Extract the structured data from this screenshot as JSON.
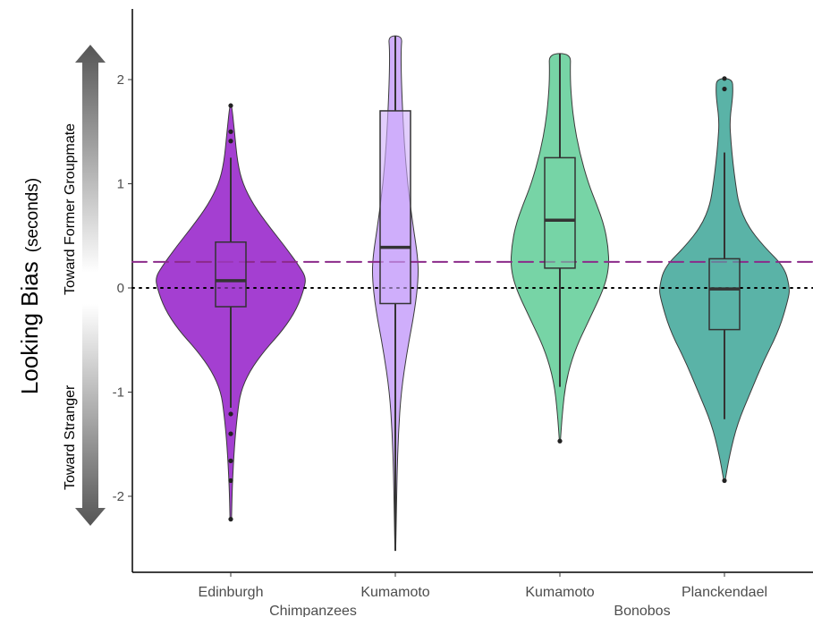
{
  "chart_data": {
    "type": "violin",
    "ylabel": "Looking Bias",
    "ylabel_unit": "(seconds)",
    "direction_labels": {
      "positive": "Toward Former Groupmate",
      "negative": "Toward Stranger"
    },
    "ylim": [
      -2.75,
      2.65
    ],
    "yticks": [
      -2,
      -1,
      0,
      1,
      2
    ],
    "ytick_labels": [
      "-2",
      "-1",
      "0",
      "1",
      "2"
    ],
    "reference_lines": [
      {
        "y": 0,
        "style": "dotted",
        "color": "#000000"
      },
      {
        "y": 0.25,
        "style": "dashed",
        "color": "#8b2a8a"
      }
    ],
    "groups": [
      {
        "name": "Chimpanzees",
        "categories": [
          "Edinburgh",
          "Kumamoto"
        ]
      },
      {
        "name": "Bonobos",
        "categories": [
          "Kumamoto",
          "Planckendael"
        ]
      }
    ],
    "categories": [
      "Edinburgh",
      "Kumamoto",
      "Kumamoto",
      "Planckendael"
    ],
    "series": [
      {
        "category": "Edinburgh",
        "group": "Chimpanzees",
        "color": "#a43fd1",
        "min": -2.22,
        "max": 1.77,
        "box": {
          "q1": -0.18,
          "median": 0.07,
          "q3": 0.44,
          "whisker_low": -1.15,
          "whisker_high": 1.25
        },
        "outliers": [
          1.75,
          1.5,
          1.41,
          -1.21,
          -1.4,
          -1.66,
          -1.85,
          -2.22
        ],
        "density": [
          [
            -2.22,
            0.01
          ],
          [
            -1.9,
            0.02
          ],
          [
            -1.5,
            0.05
          ],
          [
            -1.2,
            0.09
          ],
          [
            -1.0,
            0.13
          ],
          [
            -0.8,
            0.25
          ],
          [
            -0.6,
            0.45
          ],
          [
            -0.4,
            0.7
          ],
          [
            -0.2,
            0.88
          ],
          [
            0.0,
            0.98
          ],
          [
            0.1,
            1.0
          ],
          [
            0.2,
            0.92
          ],
          [
            0.4,
            0.72
          ],
          [
            0.6,
            0.5
          ],
          [
            0.8,
            0.3
          ],
          [
            1.0,
            0.16
          ],
          [
            1.2,
            0.09
          ],
          [
            1.5,
            0.05
          ],
          [
            1.77,
            0.01
          ]
        ]
      },
      {
        "category": "Kumamoto",
        "group": "Chimpanzees",
        "color": "#cfaefb",
        "min": -2.52,
        "max": 2.42,
        "box": {
          "q1": -0.15,
          "median": 0.39,
          "q3": 1.7,
          "whisker_low": -2.52,
          "whisker_high": 2.42
        },
        "outliers": [],
        "density": [
          [
            -2.52,
            0.01
          ],
          [
            -2.2,
            0.03
          ],
          [
            -1.8,
            0.05
          ],
          [
            -1.4,
            0.09
          ],
          [
            -1.0,
            0.17
          ],
          [
            -0.6,
            0.35
          ],
          [
            -0.2,
            0.58
          ],
          [
            0.1,
            0.68
          ],
          [
            0.3,
            0.66
          ],
          [
            0.6,
            0.52
          ],
          [
            1.0,
            0.36
          ],
          [
            1.4,
            0.26
          ],
          [
            1.8,
            0.2
          ],
          [
            2.1,
            0.17
          ],
          [
            2.3,
            0.17
          ],
          [
            2.42,
            0.2
          ]
        ]
      },
      {
        "category": "Kumamoto",
        "group": "Bonobos",
        "color": "#77d4a6",
        "min": -1.47,
        "max": 2.25,
        "box": {
          "q1": 0.19,
          "median": 0.65,
          "q3": 1.25,
          "whisker_low": -0.95,
          "whisker_high": 2.25
        },
        "outliers": [
          -1.47
        ],
        "density": [
          [
            -1.47,
            0.01
          ],
          [
            -1.2,
            0.05
          ],
          [
            -0.9,
            0.12
          ],
          [
            -0.6,
            0.3
          ],
          [
            -0.3,
            0.6
          ],
          [
            0.0,
            0.9
          ],
          [
            0.2,
            1.0
          ],
          [
            0.4,
            0.98
          ],
          [
            0.6,
            0.9
          ],
          [
            0.8,
            0.75
          ],
          [
            1.0,
            0.58
          ],
          [
            1.3,
            0.4
          ],
          [
            1.6,
            0.28
          ],
          [
            1.9,
            0.22
          ],
          [
            2.1,
            0.21
          ],
          [
            2.25,
            0.22
          ]
        ]
      },
      {
        "category": "Planckendael",
        "group": "Bonobos",
        "color": "#5ab3a7",
        "min": -1.85,
        "max": 2.01,
        "box": {
          "q1": -0.4,
          "median": -0.01,
          "q3": 0.28,
          "whisker_low": -1.26,
          "whisker_high": 1.3
        },
        "outliers": [
          2.01,
          1.91,
          -1.85
        ],
        "density": [
          [
            -1.85,
            0.01
          ],
          [
            -1.6,
            0.08
          ],
          [
            -1.3,
            0.2
          ],
          [
            -1.0,
            0.4
          ],
          [
            -0.7,
            0.6
          ],
          [
            -0.4,
            0.84
          ],
          [
            -0.1,
            0.98
          ],
          [
            0.0,
            1.0
          ],
          [
            0.2,
            0.92
          ],
          [
            0.4,
            0.6
          ],
          [
            0.6,
            0.35
          ],
          [
            0.8,
            0.22
          ],
          [
            1.0,
            0.17
          ],
          [
            1.2,
            0.13
          ],
          [
            1.4,
            0.1
          ],
          [
            1.6,
            0.08
          ],
          [
            1.8,
            0.12
          ],
          [
            1.9,
            0.13
          ],
          [
            2.01,
            0.12
          ]
        ]
      }
    ]
  }
}
